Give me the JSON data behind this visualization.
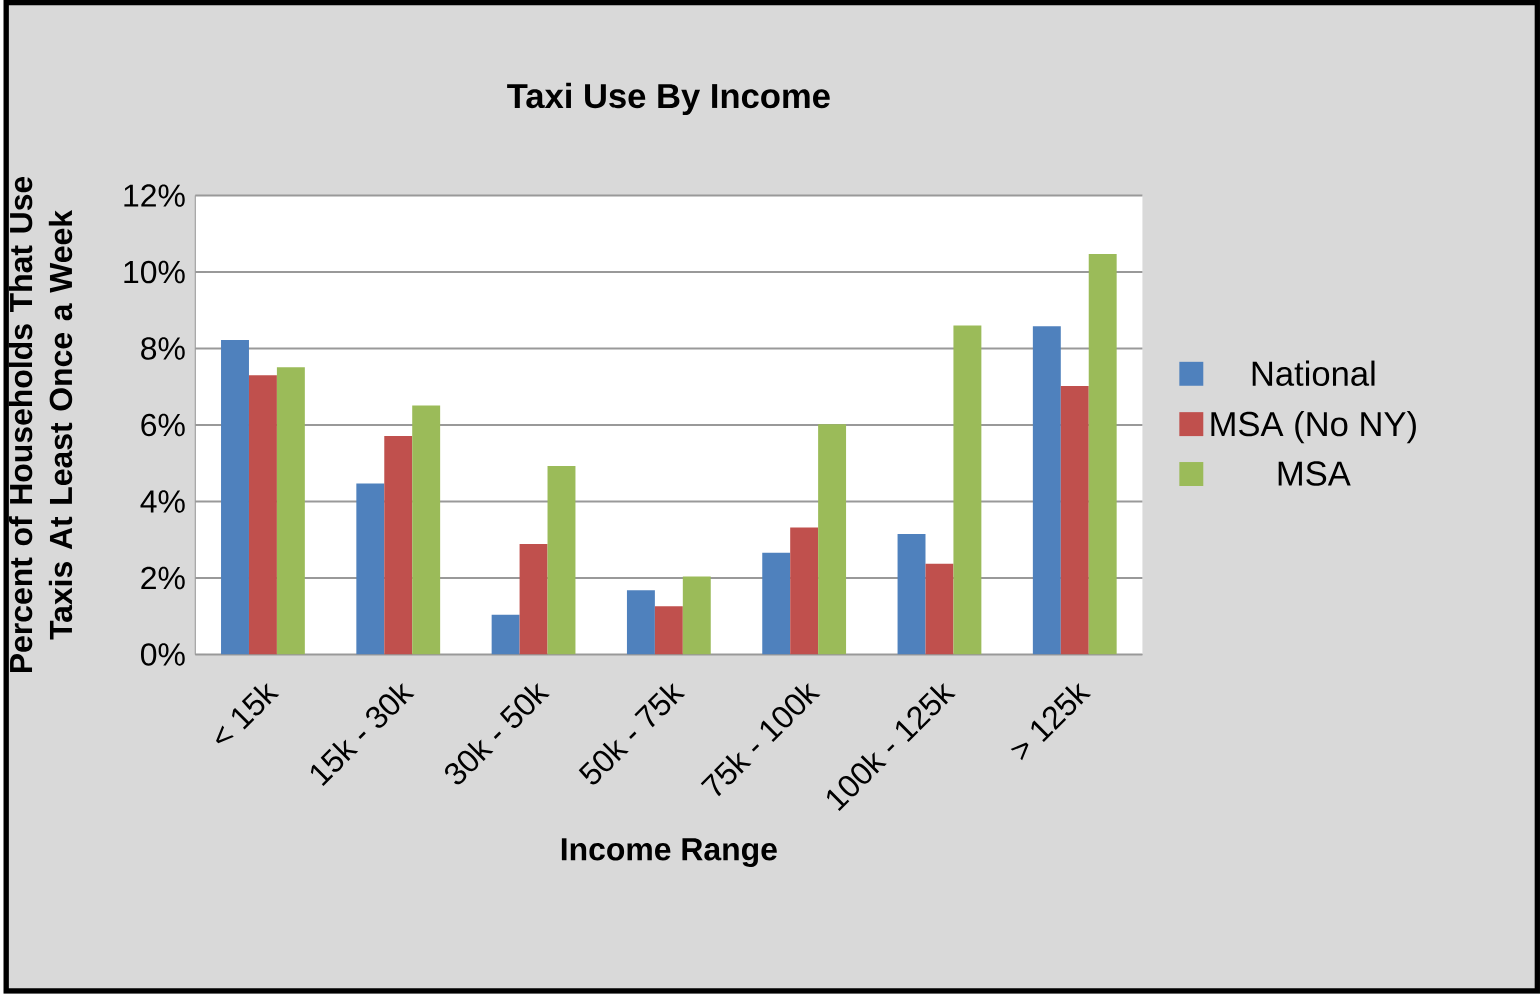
{
  "chart_data": {
    "type": "bar",
    "title": "Taxi Use By Income",
    "xlabel": "Income Range",
    "ylabel": "Percent of Households That Use Taxis At Least Once a Week",
    "categories": [
      "< 15k",
      "15k - 30k",
      "30k - 50k",
      "50k - 75k",
      "75k - 100k",
      "100k - 125k",
      "> 125k"
    ],
    "series": [
      {
        "name": "National",
        "color": "#4f81bd",
        "values": [
          8.22,
          4.47,
          1.04,
          1.68,
          2.66,
          3.15,
          8.58
        ]
      },
      {
        "name": "MSA (No NY)",
        "color": "#c0504d",
        "values": [
          7.3,
          5.71,
          2.89,
          1.26,
          3.32,
          2.37,
          7.02
        ]
      },
      {
        "name": "MSA",
        "color": "#9bbb59",
        "values": [
          7.51,
          6.51,
          4.93,
          2.04,
          6.02,
          8.6,
          10.47
        ]
      }
    ],
    "ylim": [
      0,
      12
    ],
    "yticks": [
      {
        "value": 0,
        "label": "0%"
      },
      {
        "value": 2,
        "label": "2%"
      },
      {
        "value": 4,
        "label": "4%"
      },
      {
        "value": 6,
        "label": "6%"
      },
      {
        "value": 8,
        "label": "8%"
      },
      {
        "value": 10,
        "label": "10%"
      },
      {
        "value": 12,
        "label": "12%"
      }
    ],
    "grid": "y",
    "legend": "right"
  }
}
